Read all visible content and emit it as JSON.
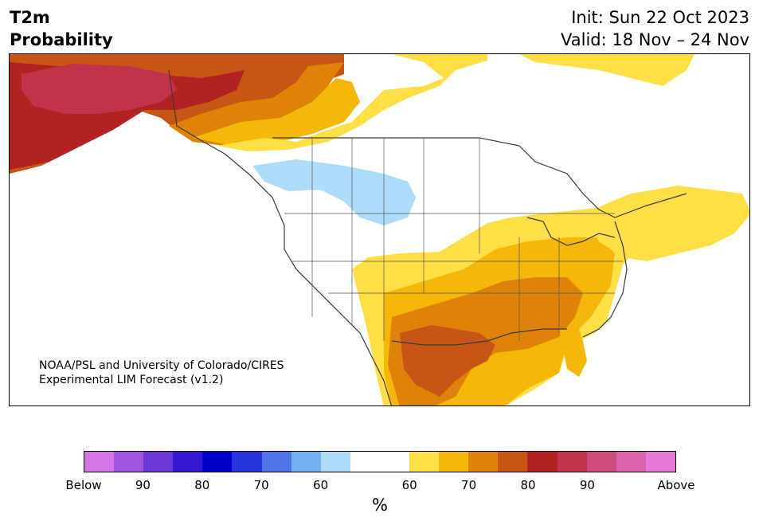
{
  "header": {
    "variable": "T2m",
    "product": "Probability",
    "init": "Init: Sun 22 Oct 2023",
    "valid": "Valid: 18 Nov – 24 Nov"
  },
  "credit": {
    "line1": "NOAA/PSL and University of Colorado/CIRES",
    "line2": "Experimental LIM Forecast (v1.2)"
  },
  "colorbar": {
    "unit": "%",
    "colors": [
      "#d575e8",
      "#9f55e0",
      "#6e36d8",
      "#3718d2",
      "#0000cc",
      "#2735dc",
      "#4f74e8",
      "#75b0f2",
      "#acdcfa",
      "#ffffff",
      "#ffffff",
      "#ffdf45",
      "#f4b70a",
      "#de8308",
      "#c65516",
      "#b22222",
      "#c1334c",
      "#d04c7e",
      "#dc62ae",
      "#e878d8"
    ],
    "tick_labels": [
      "Below",
      "90",
      "80",
      "70",
      "60",
      "60",
      "70",
      "80",
      "90",
      "Above"
    ]
  },
  "map_legend": {
    "below_normal": "#acdcfa",
    "above_60": "#ffdf45",
    "above_65": "#f4b70a",
    "above_70": "#de8308",
    "above_75": "#c65516",
    "above_80": "#b22222",
    "above_85": "#c1334c"
  }
}
